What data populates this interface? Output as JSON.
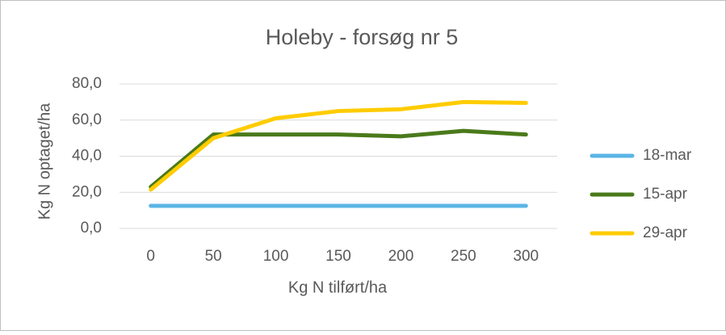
{
  "chart_data": {
    "type": "line",
    "title": "Holeby - forsøg nr 5",
    "x_label": "Kg N tilført/ha",
    "y_label": "Kg N optaget/ha",
    "categories": [
      "0",
      "50",
      "100",
      "150",
      "200",
      "250",
      "300"
    ],
    "series": [
      {
        "name": "18-mar",
        "color": "#5bb5e5",
        "values": [
          12.5,
          12.5,
          12.5,
          12.5,
          12.5,
          12.5,
          12.5
        ]
      },
      {
        "name": "15-apr",
        "color": "#4a7a1b",
        "values": [
          23,
          52,
          52,
          52,
          51,
          54,
          52
        ]
      },
      {
        "name": "29-apr",
        "color": "#ffcc00",
        "values": [
          21.5,
          50,
          61,
          65,
          66,
          70,
          69.5
        ]
      }
    ],
    "ylim": [
      0,
      80
    ],
    "yticks": [
      {
        "value": 0,
        "label": "0,0"
      },
      {
        "value": 20,
        "label": "20,0"
      },
      {
        "value": 40,
        "label": "40,0"
      },
      {
        "value": 60,
        "label": "60,0"
      },
      {
        "value": 80,
        "label": "80,0"
      }
    ],
    "grid": true,
    "legend": "right"
  }
}
